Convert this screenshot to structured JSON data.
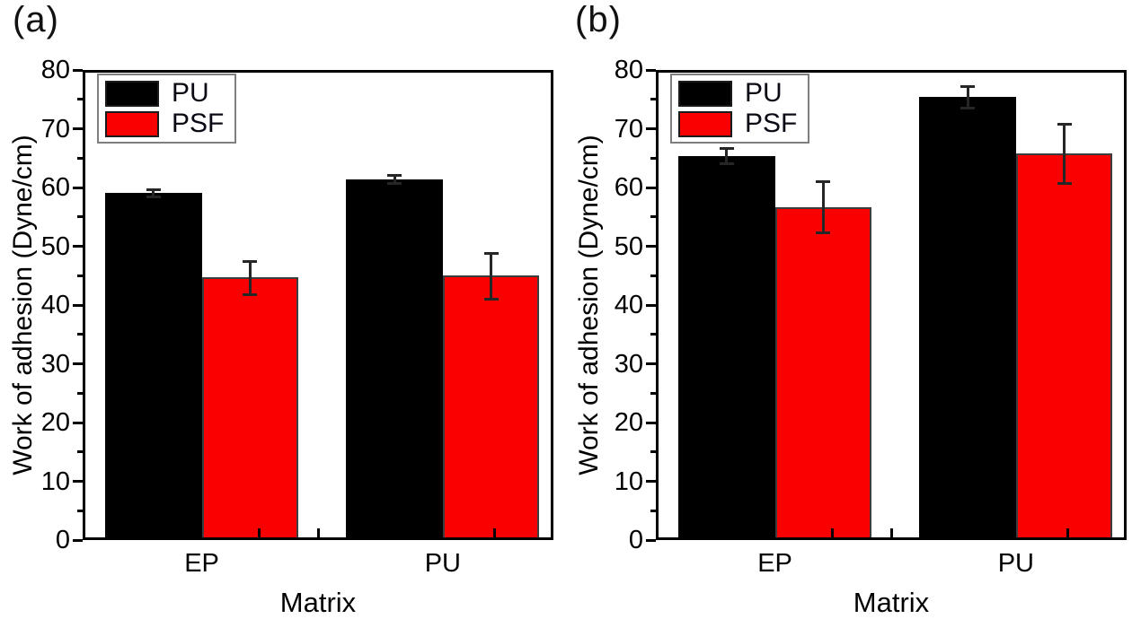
{
  "figure": {
    "background": "#ffffff",
    "frame_color": "#000000",
    "error_bar_color": "#262626",
    "legend_border_color": "#7f7f7f"
  },
  "chart_data": [
    {
      "type": "bar",
      "panel_label": "(a)",
      "title": "",
      "xlabel": "Matrix",
      "ylabel": "Work of adhesion (Dyne/cm)",
      "categories": [
        "EP",
        "PU"
      ],
      "series": [
        {
          "name": "PU",
          "color": "#000000",
          "values": [
            59.1,
            61.4
          ],
          "errors": [
            0.6,
            0.7
          ]
        },
        {
          "name": "PSF",
          "color": "#fb0000",
          "values": [
            44.7,
            45.0
          ],
          "errors": [
            2.8,
            3.9
          ]
        }
      ],
      "ylim": [
        0,
        80
      ],
      "ytick_step": 10,
      "yminor_step": 5,
      "grid": false,
      "legend_position": "top-left",
      "legend_entries": [
        "PU",
        "PSF"
      ]
    },
    {
      "type": "bar",
      "panel_label": "(b)",
      "title": "",
      "xlabel": "Matrix",
      "ylabel": "Work of adhesion (Dyne/cm)",
      "categories": [
        "EP",
        "PU"
      ],
      "series": [
        {
          "name": "PU",
          "color": "#000000",
          "values": [
            65.4,
            75.4
          ],
          "errors": [
            1.3,
            1.8
          ]
        },
        {
          "name": "PSF",
          "color": "#fb0000",
          "values": [
            56.7,
            65.8
          ],
          "errors": [
            4.4,
            5.0
          ]
        }
      ],
      "ylim": [
        0,
        80
      ],
      "ytick_step": 10,
      "yminor_step": 5,
      "grid": false,
      "legend_position": "top-left",
      "legend_entries": [
        "PU",
        "PSF"
      ]
    }
  ]
}
